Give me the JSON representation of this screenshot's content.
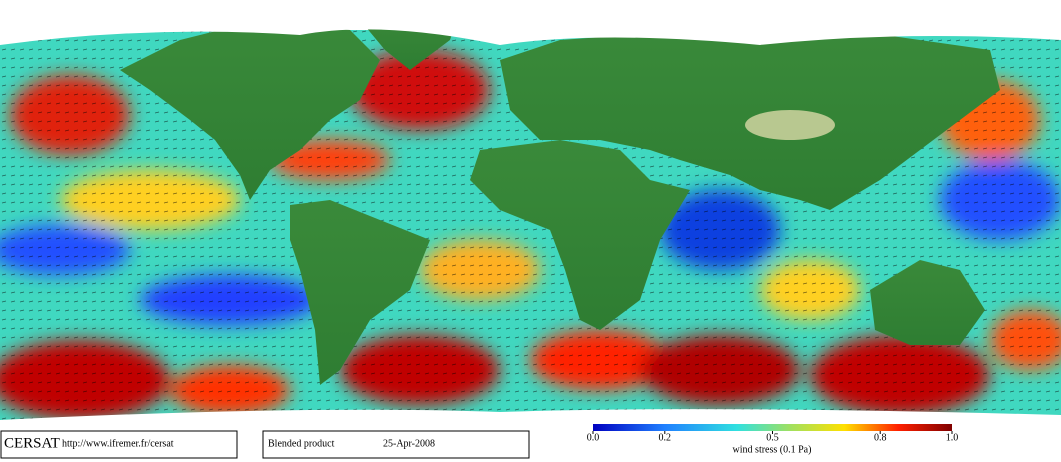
{
  "footer": {
    "brand": "CERSAT",
    "url": "http://www.ifremer.fr/cersat",
    "product": "Blended product",
    "date": "25-Apr-2008"
  },
  "colorbar": {
    "label": "wind stress (0.1 Pa)",
    "lim": [
      0,
      1
    ],
    "ticks": [
      {
        "value": 0,
        "label": "0.0"
      },
      0.2,
      0.5,
      0.8,
      {
        "value": 1,
        "label": "1.0"
      }
    ]
  }
}
